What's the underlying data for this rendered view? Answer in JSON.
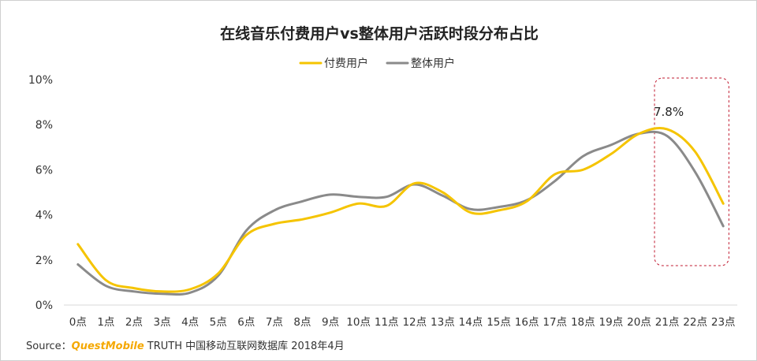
{
  "chart_data": {
    "type": "line",
    "title": "在线音乐付费用户vs整体用户活跃时段分布占比",
    "categories": [
      "0点",
      "1点",
      "2点",
      "3点",
      "4点",
      "5点",
      "6点",
      "7点",
      "8点",
      "9点",
      "10点",
      "11点",
      "12点",
      "13点",
      "14点",
      "15点",
      "16点",
      "17点",
      "18点",
      "19点",
      "20点",
      "21点",
      "22点",
      "23点"
    ],
    "series": [
      {
        "name": "付费用户",
        "color": "#f5c400",
        "values": [
          2.7,
          1.1,
          0.75,
          0.6,
          0.7,
          1.4,
          3.1,
          3.6,
          3.8,
          4.1,
          4.5,
          4.4,
          5.4,
          5.0,
          4.1,
          4.2,
          4.6,
          5.8,
          6.0,
          6.7,
          7.6,
          7.8,
          6.8,
          4.5
        ]
      },
      {
        "name": "整体用户",
        "color": "#8a8a8a",
        "values": [
          1.8,
          0.85,
          0.6,
          0.5,
          0.55,
          1.3,
          3.3,
          4.2,
          4.6,
          4.9,
          4.8,
          4.8,
          5.35,
          4.85,
          4.25,
          4.35,
          4.65,
          5.5,
          6.6,
          7.1,
          7.6,
          7.5,
          5.9,
          3.5
        ]
      }
    ],
    "yticks": [
      "0%",
      "2%",
      "4%",
      "6%",
      "8%",
      "10%"
    ],
    "ylim": [
      0,
      10
    ],
    "annotation": {
      "text": "7.8%",
      "box_categories": [
        "21点",
        "23点"
      ],
      "box_color": "#c0192f"
    },
    "legend_position": "top-center",
    "grid": false
  },
  "source": {
    "prefix": "Source：",
    "brand": "QuestMobile",
    "text": " TRUTH 中国移动互联网数据库 2018年4月"
  }
}
